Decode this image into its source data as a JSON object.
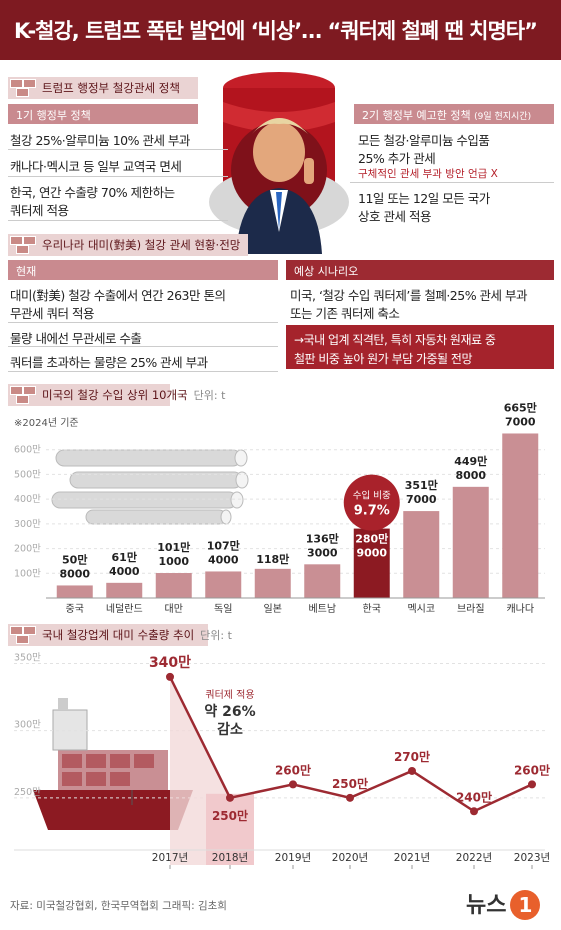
{
  "title": "K-철강, 트럼프 폭탄 발언에 ‘비상’… “쿼터제 철폐 땐 치명타”",
  "policy": {
    "heading": "트럼프 행정부 철강관세 정책",
    "first_term_tag": "1기 행정부 정책",
    "first_term_lines": [
      "철강 25%·알루미늄 10% 관세 부과",
      "캐나다·멕시코 등 일부 교역국 면세",
      "한국, 연간 수출량 70% 제한하는",
      "쿼터제 적용"
    ],
    "second_term_tag": "2기 행정부 예고한 정책",
    "second_term_tag_note": "(9일 현지시간)",
    "second_term_lines": [
      "모든 철강·알루미늄 수입품",
      "25% 추가 관세"
    ],
    "second_term_note": "구체적인 관세 부과 방안 언급 X",
    "second_term_lines2": [
      "11일 또는 12일 모든 국가",
      "상호 관세 적용"
    ]
  },
  "korea": {
    "heading": "우리나라 대미(對美) 철강 관세 현황·전망",
    "current_tag": "현재",
    "current_lines": [
      "대미(對美) 철강 수출에서 연간 263만 톤의",
      "무관세 쿼터 적용",
      "물량 내에선 무관세로 수출",
      "쿼터를 초과하는 물량은 25% 관세 부과"
    ],
    "scenario_tag": "예상 시나리오",
    "scenario_lines": [
      "미국, ‘철강 수입 쿼터제’를 철폐·25% 관세 부과",
      "또는 기존 쿼터제 축소"
    ],
    "scenario_box": [
      "→국내 업계 직격탄, 특히 자동차 원재료 중",
      "철판 비중 높아 원가 부담 가중될 전망"
    ]
  },
  "chart1_head": {
    "label": "미국의 철강 수입 상위 10개국",
    "unit": "단위: t",
    "note": "※2024년 기준",
    "callout_label": "수입 비중",
    "callout_value": "9.7%"
  },
  "chart2_head": {
    "label": "국내 철강업계 대미 수출량 추이",
    "unit": "단위: t",
    "callout": [
      "쿼터제 적용",
      "약 26%",
      "감소"
    ]
  },
  "footer": {
    "source": "자료: 미국철강협회, 한국무역협회     그래픽: 김초희",
    "logo": "뉴스",
    "logo_num": "1"
  },
  "chart_data": [
    {
      "type": "bar",
      "title": "미국의 철강 수입 상위 10개국",
      "ylabel": "단위: t",
      "categories": [
        "중국",
        "네덜란드",
        "대만",
        "독일",
        "일본",
        "베트남",
        "한국",
        "멕시코",
        "브라질",
        "캐나다"
      ],
      "values": [
        508000,
        614000,
        1011000,
        1074000,
        1180000,
        1363000,
        2809000,
        3517000,
        4498000,
        6657000
      ],
      "labels": [
        [
          "50만",
          "8000"
        ],
        [
          "61만",
          "4000"
        ],
        [
          "101만",
          "1000"
        ],
        [
          "107만",
          "4000"
        ],
        [
          "118만",
          ""
        ],
        [
          "136만",
          "3000"
        ],
        [
          "280만",
          "9000"
        ],
        [
          "351만",
          "7000"
        ],
        [
          "449만",
          "8000"
        ],
        [
          "665만",
          "7000"
        ]
      ],
      "yticks": [
        "100만",
        "200만",
        "300만",
        "400만",
        "500만",
        "600만"
      ],
      "ylim": [
        0,
        7000000
      ],
      "highlight": "한국"
    },
    {
      "type": "line",
      "title": "국내 철강업계 대미 수출량 추이",
      "ylabel": "단위: t",
      "categories": [
        "2017년",
        "2018년",
        "2019년",
        "2020년",
        "2021년",
        "2022년",
        "2023년"
      ],
      "values": [
        3400000,
        2500000,
        2600000,
        2500000,
        2700000,
        2400000,
        2600000
      ],
      "labels": [
        "340만",
        "250만",
        "260만",
        "250만",
        "270만",
        "240만",
        "260만"
      ],
      "yticks": [
        "250만",
        "300만",
        "350만"
      ],
      "ylim": [
        2000000,
        3600000
      ]
    }
  ]
}
